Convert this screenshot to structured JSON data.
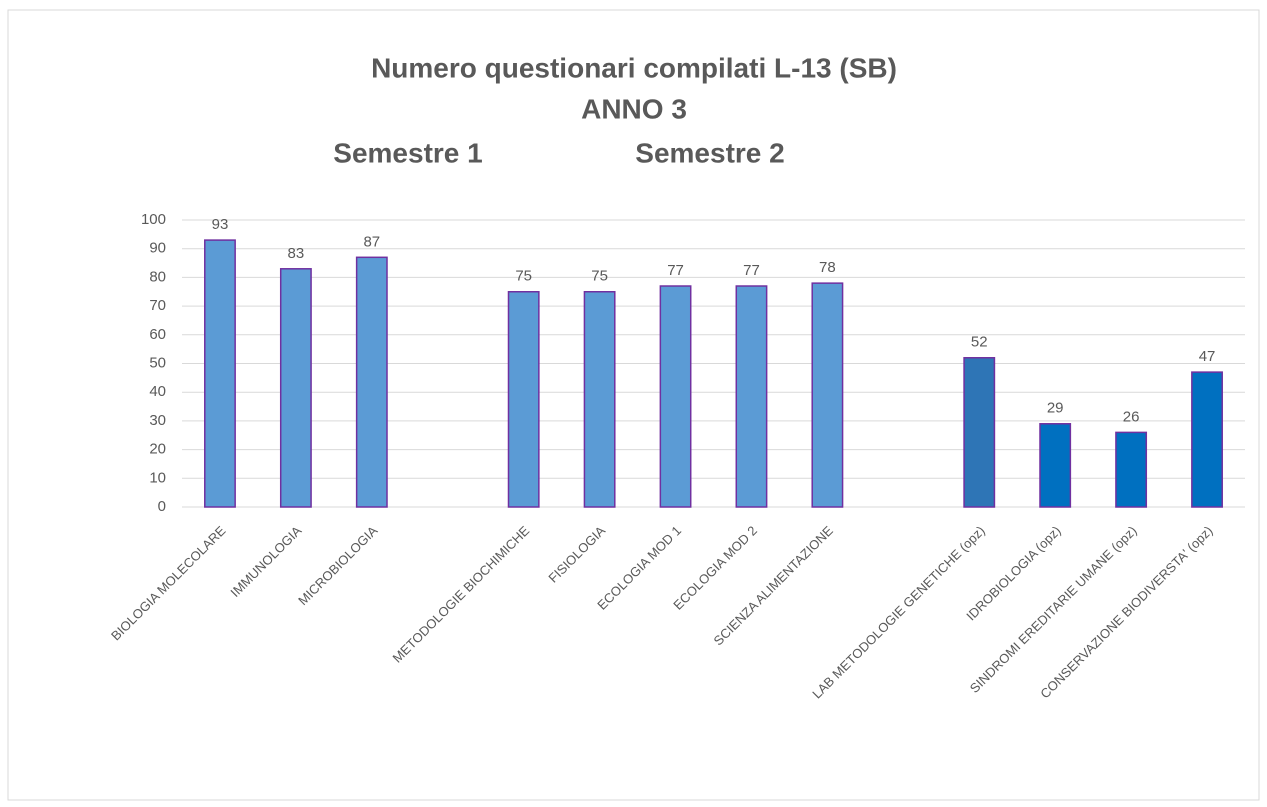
{
  "chart_data": {
    "type": "bar",
    "title": "Numero  questionari compilati L-13 (SB)",
    "subtitle": "ANNO 3",
    "annotations": [
      "Semestre  1",
      "Semestre 2"
    ],
    "categories": [
      "BIOLOGIA MOLECOLARE",
      "IMMUNOLOGIA",
      "MICROBIOLOGIA",
      null,
      "METODOLOGIE BIOCHIMICHE",
      "FISIOLOGIA",
      "ECOLOGIA MOD 1",
      "ECOLOGIA MOD 2",
      "SCIENZA ALIMENTAZIONE",
      null,
      "LAB METODOLOGIE GENETICHE (opz)",
      "IDROBIOLOGIA  (opz)",
      "SINDROMI EREDITARIE UMANE (opz)",
      "CONSERVAZIONE BIODIVERSTA' (opz)"
    ],
    "values": [
      93,
      83,
      87,
      null,
      75,
      75,
      77,
      77,
      78,
      null,
      52,
      29,
      26,
      47
    ],
    "colors": [
      "#5b9bd5",
      "#5b9bd5",
      "#5b9bd5",
      null,
      "#5b9bd5",
      "#5b9bd5",
      "#5b9bd5",
      "#5b9bd5",
      "#5b9bd5",
      null,
      "#2e75b6",
      "#0070c0",
      "#0070c0",
      "#0070c0"
    ],
    "ylim": [
      0,
      100
    ],
    "yticks": [
      0,
      10,
      20,
      30,
      40,
      50,
      60,
      70,
      80,
      90,
      100
    ],
    "grid": true
  }
}
